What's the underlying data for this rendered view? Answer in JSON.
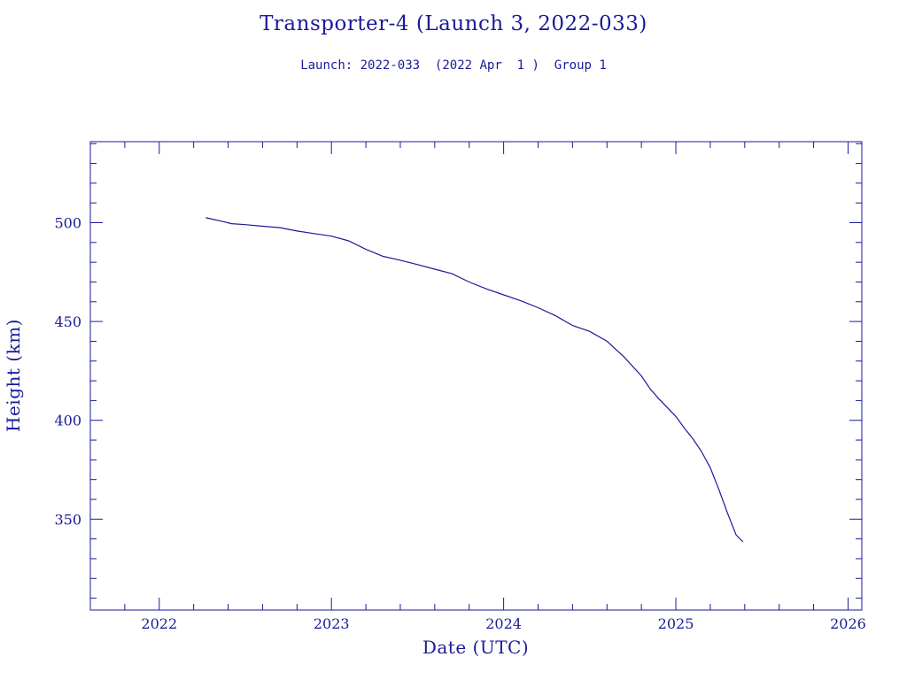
{
  "chart_data": {
    "type": "line",
    "title": "Transporter-4 (Launch 3, 2022-033)",
    "subtitle": "Launch: 2022-033  (2022 Apr  1 )  Group 1",
    "xlabel": "Date (UTC)",
    "ylabel": "Height (km)",
    "x_unit": "decimal year (UTC)",
    "xlim": [
      2021.6,
      2026.08
    ],
    "ylim": [
      304,
      541
    ],
    "x_ticks": [
      2022,
      2023,
      2024,
      2025,
      2026
    ],
    "x_tick_labels": [
      "2022",
      "2023",
      "2024",
      "2025",
      "2026"
    ],
    "y_ticks": [
      350,
      400,
      450,
      500
    ],
    "y_tick_labels": [
      "350",
      "400",
      "450",
      "500"
    ],
    "grid": false,
    "color": "#1a1a9a",
    "series": [
      {
        "x": [
          2022.27,
          2022.3,
          2022.35,
          2022.42,
          2022.5,
          2022.6,
          2022.7,
          2022.8,
          2022.9,
          2023.0,
          2023.1,
          2023.2,
          2023.3,
          2023.4,
          2023.5,
          2023.6,
          2023.7,
          2023.8,
          2023.9,
          2024.0,
          2024.1,
          2024.2,
          2024.3,
          2024.4,
          2024.5,
          2024.6,
          2024.7,
          2024.8,
          2024.85,
          2024.9,
          2025.0,
          2025.05,
          2025.1,
          2025.15,
          2025.2,
          2025.25,
          2025.3,
          2025.35,
          2025.39
        ],
        "y": [
          502.5,
          502.0,
          501.0,
          499.5,
          499.0,
          498.2,
          497.5,
          495.8,
          494.5,
          493.2,
          490.8,
          486.5,
          483.0,
          481.0,
          478.8,
          476.5,
          474.2,
          470.0,
          466.5,
          463.5,
          460.5,
          457.0,
          453.0,
          448.0,
          445.0,
          440.0,
          432.0,
          422.5,
          416.0,
          411.0,
          402.0,
          396.0,
          390.5,
          384.0,
          376.0,
          365.0,
          353.0,
          342.0,
          338.5
        ]
      }
    ]
  }
}
